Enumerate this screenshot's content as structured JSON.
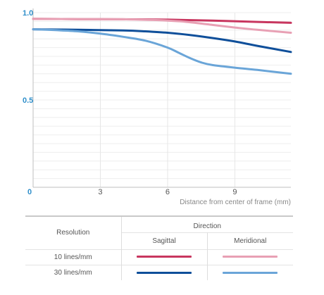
{
  "chart_data": {
    "type": "line",
    "title": "",
    "xlabel": "Distance from center of frame (mm)",
    "ylabel": "",
    "xlim": [
      0,
      11.5
    ],
    "ylim": [
      0,
      1.0
    ],
    "x_ticks": [
      0,
      3,
      6,
      9
    ],
    "x_tick_labels": [
      "0",
      "3",
      "6",
      "9"
    ],
    "y_ticks": [
      0.5,
      1.0
    ],
    "y_tick_labels": [
      "0.5",
      "1.0"
    ],
    "grid": true,
    "series": [
      {
        "lines": "10 lines/mm",
        "direction": "Sagittal",
        "color": "#c8365f",
        "x": [
          0,
          2,
          4,
          6,
          8,
          10,
          11.5
        ],
        "y": [
          0.965,
          0.963,
          0.962,
          0.96,
          0.955,
          0.947,
          0.942
        ]
      },
      {
        "lines": "10 lines/mm",
        "direction": "Meridional",
        "color": "#e8a0b4",
        "x": [
          0,
          2,
          4,
          6,
          7,
          8,
          9,
          10,
          11.5
        ],
        "y": [
          0.965,
          0.963,
          0.962,
          0.955,
          0.945,
          0.93,
          0.915,
          0.902,
          0.885
        ]
      },
      {
        "lines": "30 lines/mm",
        "direction": "Sagittal",
        "color": "#0f4f9a",
        "x": [
          0,
          2,
          4,
          5,
          6,
          7,
          8,
          9,
          10,
          11.5
        ],
        "y": [
          0.905,
          0.902,
          0.898,
          0.893,
          0.885,
          0.872,
          0.855,
          0.835,
          0.81,
          0.775
        ]
      },
      {
        "lines": "30 lines/mm",
        "direction": "Meridional",
        "color": "#6aa5d8",
        "x": [
          0,
          1,
          2,
          3,
          4,
          5,
          6,
          6.5,
          7,
          7.5,
          8,
          9,
          10,
          11.5
        ],
        "y": [
          0.905,
          0.9,
          0.893,
          0.88,
          0.862,
          0.84,
          0.8,
          0.77,
          0.74,
          0.715,
          0.7,
          0.685,
          0.672,
          0.65
        ]
      }
    ]
  },
  "legend": {
    "resolution_header": "Resolution",
    "direction_header": "Direction",
    "sagittal_label": "Sagittal",
    "meridional_label": "Meridional",
    "rows": [
      {
        "label": "10 lines/mm",
        "sagittal_color": "#c8365f",
        "meridional_color": "#e8a0b4"
      },
      {
        "label": "30 lines/mm",
        "sagittal_color": "#0f4f9a",
        "meridional_color": "#6aa5d8"
      }
    ]
  }
}
